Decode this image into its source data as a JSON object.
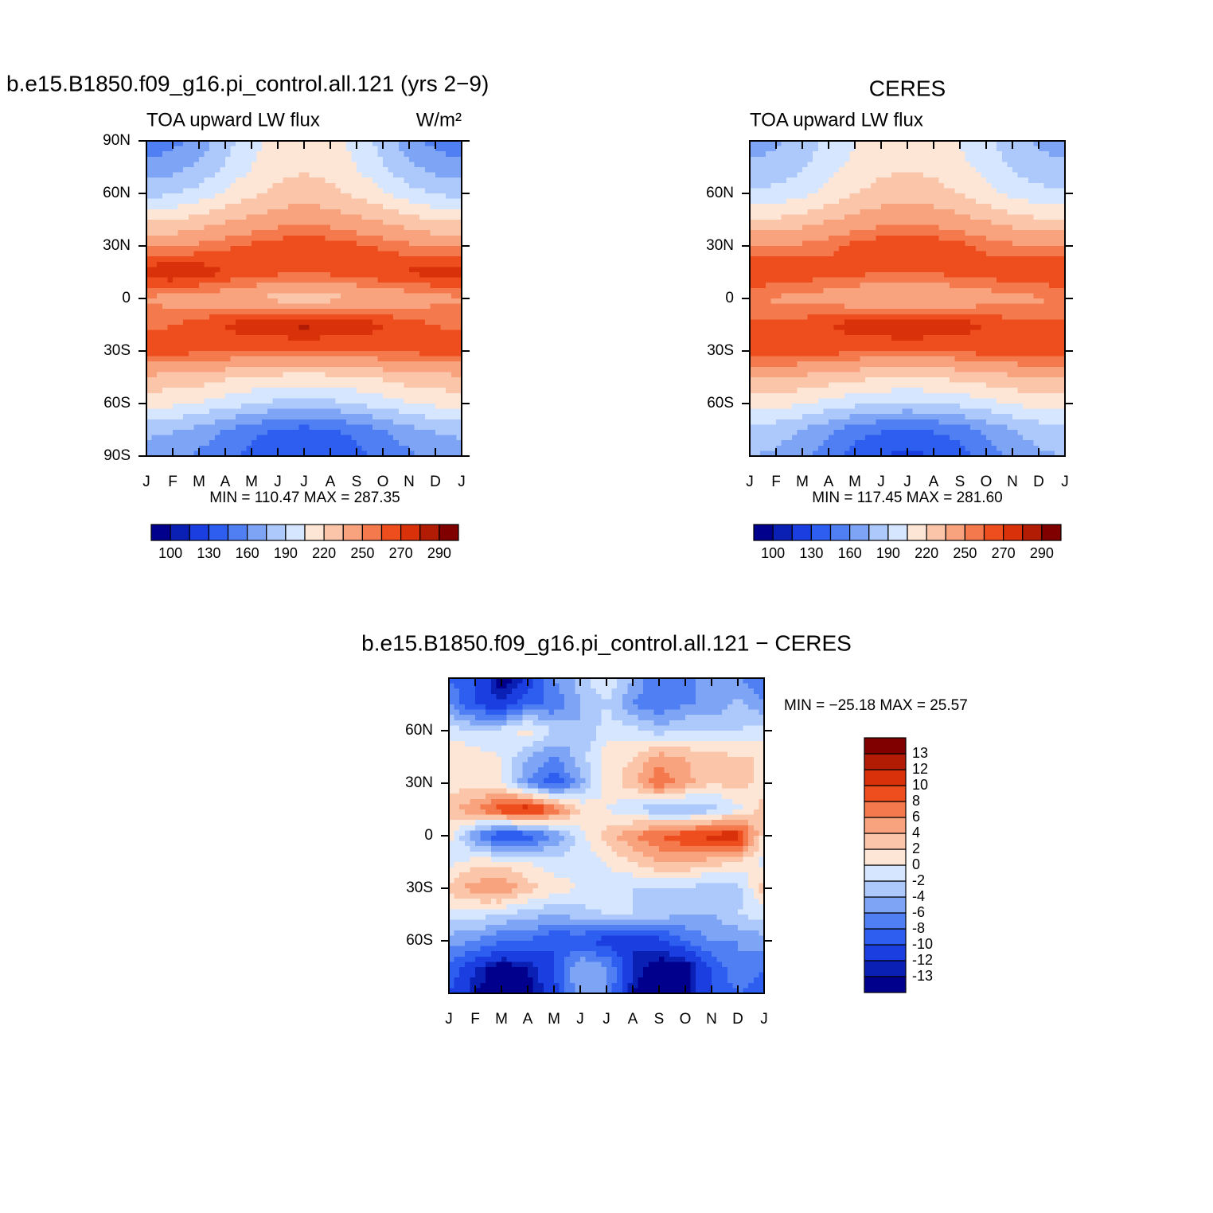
{
  "chart_data": [
    {
      "type": "contour",
      "title": "b.e15.B1850.f09_g16.pi_control.all.121 (yrs 2−9)",
      "left_label": "TOA upward LW flux",
      "right_label": "W/m²",
      "stats": "MIN = 110.47 MAX = 287.35",
      "categories": [
        "J",
        "F",
        "M",
        "A",
        "M",
        "J",
        "J",
        "A",
        "S",
        "O",
        "N",
        "D",
        "J"
      ],
      "ylim": [
        -90,
        90
      ],
      "yticks": [
        {
          "value": 90,
          "label": "90N"
        },
        {
          "value": 60,
          "label": "60N"
        },
        {
          "value": 30,
          "label": "30N"
        },
        0,
        {
          "value": -30,
          "label": "30S"
        },
        {
          "value": -60,
          "label": "60S"
        },
        {
          "value": -90,
          "label": "90S"
        }
      ],
      "lats": [
        90,
        75,
        60,
        45,
        30,
        15,
        0,
        -15,
        -30,
        -45,
        -60,
        -75,
        -90
      ],
      "z": [
        [
          150,
          155,
          166,
          183,
          199,
          210,
          215,
          210,
          199,
          183,
          166,
          155,
          150
        ],
        [
          165,
          169,
          178,
          192,
          205,
          214,
          218,
          214,
          205,
          192,
          178,
          169,
          165
        ],
        [
          185,
          188,
          196,
          207,
          217,
          225,
          228,
          225,
          217,
          207,
          196,
          188,
          185
        ],
        [
          218,
          220,
          225,
          232,
          238,
          243,
          245,
          243,
          238,
          232,
          225,
          220,
          218
        ],
        [
          248,
          249,
          253,
          258,
          263,
          267,
          268,
          267,
          263,
          258,
          253,
          249,
          248
        ],
        [
          278,
          281,
          278,
          270,
          266,
          263,
          262,
          263,
          266,
          270,
          272,
          275,
          278
        ],
        [
          248,
          245,
          243,
          240,
          235,
          230,
          228,
          230,
          234,
          238,
          242,
          246,
          248
        ],
        [
          258,
          260,
          265,
          271,
          277,
          281,
          283,
          281,
          277,
          271,
          265,
          260,
          258
        ],
        [
          265,
          264,
          263,
          262,
          260,
          258,
          258,
          258,
          260,
          262,
          263,
          264,
          265
        ],
        [
          232,
          231,
          228,
          223,
          219,
          216,
          215,
          216,
          219,
          223,
          228,
          231,
          232
        ],
        [
          210,
          208,
          204,
          197,
          191,
          186,
          185,
          186,
          191,
          197,
          204,
          208,
          210
        ],
        [
          180,
          177,
          170,
          160,
          150,
          143,
          140,
          143,
          150,
          160,
          170,
          177,
          180
        ],
        [
          165,
          163,
          157,
          148,
          140,
          133,
          130,
          133,
          140,
          148,
          157,
          163,
          165
        ]
      ],
      "levels": [
        100,
        115,
        130,
        145,
        160,
        175,
        190,
        205,
        220,
        235,
        250,
        260,
        270,
        280,
        290
      ],
      "label_every": 2,
      "colors": [
        "#00008c",
        "#0a1fb4",
        "#1a3ee0",
        "#2e5ef0",
        "#4f7ff2",
        "#7ea4f6",
        "#adc8fa",
        "#d6e6fe",
        "#fde6d5",
        "#fbc5aa",
        "#f8a37e",
        "#f47a4e",
        "#ee4d1e",
        "#d9320a",
        "#b21c04",
        "#800000"
      ]
    },
    {
      "type": "contour",
      "title": "CERES",
      "left_label": "TOA upward LW flux",
      "stats": "MIN = 117.45 MAX = 281.60",
      "categories": [
        "J",
        "F",
        "M",
        "A",
        "M",
        "J",
        "J",
        "A",
        "S",
        "O",
        "N",
        "D",
        "J"
      ],
      "ylim": [
        -90,
        90
      ],
      "yticks": [
        {
          "value": 60,
          "label": "60N"
        },
        {
          "value": 30,
          "label": "30N"
        },
        0,
        {
          "value": -30,
          "label": "30S"
        },
        {
          "value": -60,
          "label": "60S"
        }
      ],
      "lats": [
        90,
        75,
        60,
        45,
        30,
        15,
        0,
        -15,
        -30,
        -45,
        -60,
        -75,
        -90
      ],
      "z": [
        [
          168,
          172,
          181,
          193,
          204,
          212,
          215,
          212,
          204,
          193,
          181,
          172,
          168
        ],
        [
          178,
          181,
          188,
          199,
          209,
          216,
          219,
          216,
          209,
          199,
          188,
          181,
          178
        ],
        [
          192,
          195,
          201,
          210,
          219,
          226,
          229,
          226,
          219,
          210,
          201,
          195,
          192
        ],
        [
          220,
          222,
          227,
          234,
          240,
          244,
          246,
          244,
          240,
          234,
          227,
          222,
          220
        ],
        [
          250,
          250,
          252,
          257,
          263,
          268,
          270,
          268,
          263,
          257,
          252,
          250,
          250
        ],
        [
          272,
          270,
          268,
          265,
          263,
          262,
          262,
          262,
          264,
          266,
          268,
          270,
          272
        ],
        [
          250,
          248,
          246,
          243,
          238,
          234,
          232,
          234,
          238,
          242,
          246,
          248,
          250
        ],
        [
          262,
          263,
          265,
          270,
          275,
          279,
          281,
          279,
          275,
          270,
          265,
          263,
          262
        ],
        [
          268,
          268,
          267,
          265,
          262,
          260,
          260,
          260,
          262,
          265,
          267,
          268,
          268
        ],
        [
          236,
          235,
          232,
          228,
          224,
          221,
          220,
          221,
          224,
          228,
          232,
          235,
          236
        ],
        [
          212,
          210,
          206,
          200,
          194,
          190,
          188,
          190,
          194,
          200,
          206,
          210,
          212
        ],
        [
          185,
          182,
          175,
          163,
          153,
          146,
          143,
          146,
          153,
          163,
          175,
          182,
          185
        ],
        [
          175,
          172,
          163,
          150,
          138,
          130,
          126,
          130,
          138,
          150,
          163,
          172,
          175
        ]
      ],
      "levels": [
        100,
        115,
        130,
        145,
        160,
        175,
        190,
        205,
        220,
        235,
        250,
        260,
        270,
        280,
        290
      ],
      "label_every": 2,
      "colors": [
        "#00008c",
        "#0a1fb4",
        "#1a3ee0",
        "#2e5ef0",
        "#4f7ff2",
        "#7ea4f6",
        "#adc8fa",
        "#d6e6fe",
        "#fde6d5",
        "#fbc5aa",
        "#f8a37e",
        "#f47a4e",
        "#ee4d1e",
        "#d9320a",
        "#b21c04",
        "#800000"
      ]
    },
    {
      "type": "contour",
      "title": "b.e15.B1850.f09_g16.pi_control.all.121 − CERES",
      "stats": "MIN = −25.18 MAX =  25.57",
      "categories": [
        "J",
        "F",
        "M",
        "A",
        "M",
        "J",
        "J",
        "A",
        "S",
        "O",
        "N",
        "D",
        "J"
      ],
      "ylim": [
        -90,
        90
      ],
      "yticks": [
        {
          "value": 60,
          "label": "60N"
        },
        {
          "value": 30,
          "label": "30N"
        },
        0,
        {
          "value": -30,
          "label": "30S"
        },
        {
          "value": -60,
          "label": "60S"
        }
      ],
      "lats": [
        90,
        75,
        60,
        45,
        30,
        15,
        0,
        -15,
        -30,
        -45,
        -60,
        -75,
        -90
      ],
      "z": [
        [
          -8,
          -10,
          -14,
          -12,
          -6,
          -3,
          0,
          -4,
          -8,
          -7,
          -5,
          -6,
          -8
        ],
        [
          -6,
          -10,
          -12,
          -8,
          -8,
          -4,
          -2,
          -6,
          -8,
          -6,
          -6,
          -3,
          -6
        ],
        [
          -1,
          -2,
          -1,
          1,
          -2,
          -4,
          -1,
          -1,
          -3,
          -2,
          -2,
          -2,
          -1
        ],
        [
          2,
          1,
          0,
          -4,
          -6,
          -3,
          1,
          2,
          5,
          4,
          3,
          2,
          2
        ],
        [
          1,
          1,
          0,
          -6,
          -10,
          -5,
          1,
          3,
          8,
          5,
          2,
          3,
          1
        ],
        [
          3,
          6,
          10,
          12,
          8,
          2,
          0,
          -2,
          -4,
          -5,
          -3,
          -1,
          3
        ],
        [
          1,
          -6,
          -11,
          -10,
          -6,
          -1,
          3,
          6,
          8,
          10,
          11,
          12,
          1
        ],
        [
          -1,
          1,
          1,
          0,
          -1,
          -1,
          0,
          2,
          4,
          4,
          3,
          2,
          -1
        ],
        [
          3,
          5,
          6,
          3,
          1,
          0,
          -1,
          -2,
          -2,
          -2,
          -4,
          -3,
          3
        ],
        [
          -1,
          -1,
          -2,
          -3,
          -4,
          -3,
          -2,
          -2,
          -3,
          -4,
          -4,
          -2,
          -1
        ],
        [
          -5,
          -6,
          -8,
          -8,
          -10,
          -10,
          -11,
          -12,
          -11,
          -8,
          -6,
          -6,
          -5
        ],
        [
          -8,
          -12,
          -14,
          -13,
          -10,
          -4,
          -6,
          -12,
          -14,
          -14,
          -10,
          -6,
          -8
        ],
        [
          -10,
          -13,
          -14,
          -14,
          -11,
          -4,
          -6,
          -13,
          -15,
          -14,
          -10,
          -8,
          -10
        ]
      ],
      "levels": [
        -13,
        -12,
        -10,
        -8,
        -6,
        -4,
        -2,
        0,
        2,
        4,
        6,
        8,
        10,
        12,
        13
      ],
      "label_every": 1,
      "colors": [
        "#00008c",
        "#0a1fb4",
        "#1a3ee0",
        "#2e5ef0",
        "#4f7ff2",
        "#7ea4f6",
        "#adc8fa",
        "#d6e6fe",
        "#fde6d5",
        "#fbc5aa",
        "#f8a37e",
        "#f47a4e",
        "#ee4d1e",
        "#d9320a",
        "#b21c04",
        "#800000"
      ]
    }
  ]
}
